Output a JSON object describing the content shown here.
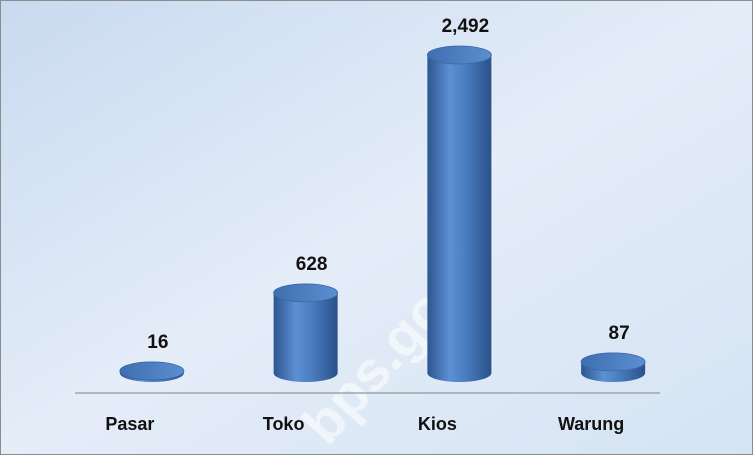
{
  "chart_data": {
    "type": "bar3d",
    "categories": [
      "Pasar",
      "Toko",
      "Kios",
      "Warung"
    ],
    "values": [
      16,
      628,
      2492,
      87
    ],
    "value_labels": [
      "16",
      "628",
      "2,492",
      "87"
    ],
    "color": "#4f81bd",
    "watermark": "bps.go.id"
  }
}
